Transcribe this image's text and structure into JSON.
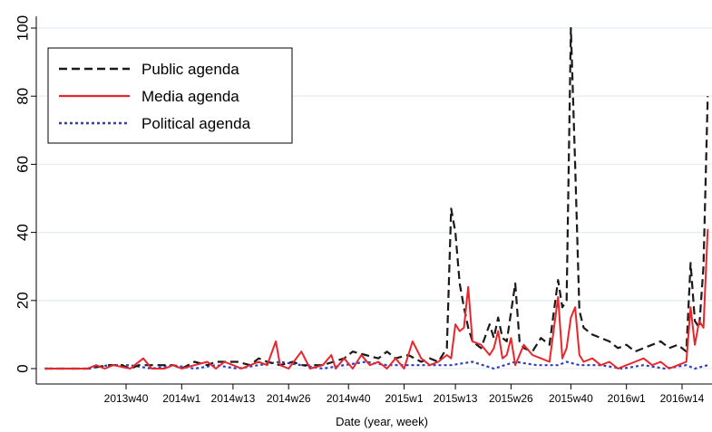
{
  "chart_data": {
    "type": "line",
    "xlabel": "Date (year, week)",
    "ylabel": "",
    "ylim": [
      0,
      100
    ],
    "yticks": [
      0,
      20,
      40,
      60,
      80,
      100
    ],
    "x_tick_labels": [
      "2013w40",
      "2014w1",
      "2014w13",
      "2014w26",
      "2014w40",
      "2015w1",
      "2015w13",
      "2015w26",
      "2015w40",
      "2016w1",
      "2016w14"
    ],
    "x_tick_weeks": [
      19,
      32,
      44,
      57,
      71,
      84,
      96,
      109,
      123,
      136,
      149
    ],
    "grid": true,
    "legend_position": "top-left",
    "series": [
      {
        "name": "Public agenda",
        "color": "#1a1a1a",
        "dash": "dashed",
        "points": [
          [
            0,
            0
          ],
          [
            5,
            0
          ],
          [
            10,
            0
          ],
          [
            15,
            1
          ],
          [
            18,
            1
          ],
          [
            20,
            0
          ],
          [
            22,
            1
          ],
          [
            25,
            1
          ],
          [
            30,
            1
          ],
          [
            32,
            0
          ],
          [
            35,
            2
          ],
          [
            38,
            1
          ],
          [
            40,
            2
          ],
          [
            45,
            2
          ],
          [
            48,
            1
          ],
          [
            50,
            3
          ],
          [
            52,
            2
          ],
          [
            55,
            1
          ],
          [
            58,
            2
          ],
          [
            60,
            1
          ],
          [
            65,
            1
          ],
          [
            70,
            3
          ],
          [
            72,
            5
          ],
          [
            75,
            4
          ],
          [
            78,
            3
          ],
          [
            80,
            5
          ],
          [
            82,
            3
          ],
          [
            85,
            4
          ],
          [
            88,
            2
          ],
          [
            90,
            3
          ],
          [
            92,
            2
          ],
          [
            94,
            6
          ],
          [
            95,
            47
          ],
          [
            96,
            40
          ],
          [
            97,
            25
          ],
          [
            98,
            18
          ],
          [
            99,
            12
          ],
          [
            100,
            8
          ],
          [
            102,
            6
          ],
          [
            104,
            13
          ],
          [
            105,
            9
          ],
          [
            106,
            15
          ],
          [
            107,
            9
          ],
          [
            108,
            8
          ],
          [
            110,
            25
          ],
          [
            111,
            8
          ],
          [
            112,
            6
          ],
          [
            114,
            5
          ],
          [
            116,
            9
          ],
          [
            118,
            7
          ],
          [
            120,
            26
          ],
          [
            121,
            18
          ],
          [
            122,
            20
          ],
          [
            123,
            100
          ],
          [
            124,
            60
          ],
          [
            125,
            17
          ],
          [
            126,
            12
          ],
          [
            128,
            10
          ],
          [
            130,
            9
          ],
          [
            132,
            8
          ],
          [
            134,
            6
          ],
          [
            136,
            7
          ],
          [
            138,
            5
          ],
          [
            140,
            6
          ],
          [
            142,
            7
          ],
          [
            144,
            8
          ],
          [
            146,
            6
          ],
          [
            148,
            7
          ],
          [
            150,
            5
          ],
          [
            151,
            31
          ],
          [
            152,
            14
          ],
          [
            153,
            12
          ],
          [
            154,
            30
          ],
          [
            155,
            80
          ]
        ]
      },
      {
        "name": "Media agenda",
        "color": "#e8262b",
        "dash": "solid",
        "points": [
          [
            0,
            0
          ],
          [
            5,
            0
          ],
          [
            10,
            0
          ],
          [
            12,
            1
          ],
          [
            14,
            0
          ],
          [
            16,
            1
          ],
          [
            20,
            0
          ],
          [
            23,
            3
          ],
          [
            25,
            0
          ],
          [
            28,
            0
          ],
          [
            30,
            1
          ],
          [
            32,
            0
          ],
          [
            35,
            1
          ],
          [
            38,
            2
          ],
          [
            40,
            0
          ],
          [
            42,
            2
          ],
          [
            44,
            1
          ],
          [
            46,
            0
          ],
          [
            48,
            1
          ],
          [
            50,
            2
          ],
          [
            52,
            1
          ],
          [
            54,
            8
          ],
          [
            55,
            1
          ],
          [
            57,
            0
          ],
          [
            60,
            5
          ],
          [
            62,
            0
          ],
          [
            65,
            1
          ],
          [
            67,
            4
          ],
          [
            68,
            0
          ],
          [
            70,
            3
          ],
          [
            72,
            0
          ],
          [
            74,
            4
          ],
          [
            76,
            1
          ],
          [
            78,
            2
          ],
          [
            80,
            0
          ],
          [
            82,
            3
          ],
          [
            84,
            0
          ],
          [
            86,
            8
          ],
          [
            88,
            3
          ],
          [
            90,
            1
          ],
          [
            92,
            2
          ],
          [
            94,
            4
          ],
          [
            95,
            3
          ],
          [
            96,
            13
          ],
          [
            97,
            11
          ],
          [
            98,
            12
          ],
          [
            99,
            24
          ],
          [
            100,
            8
          ],
          [
            102,
            7
          ],
          [
            104,
            4
          ],
          [
            105,
            6
          ],
          [
            106,
            11
          ],
          [
            107,
            3
          ],
          [
            108,
            4
          ],
          [
            109,
            9
          ],
          [
            110,
            1
          ],
          [
            112,
            7
          ],
          [
            114,
            4
          ],
          [
            116,
            3
          ],
          [
            118,
            2
          ],
          [
            120,
            21
          ],
          [
            121,
            3
          ],
          [
            122,
            6
          ],
          [
            123,
            15
          ],
          [
            124,
            18
          ],
          [
            125,
            4
          ],
          [
            126,
            2
          ],
          [
            128,
            3
          ],
          [
            130,
            1
          ],
          [
            132,
            2
          ],
          [
            134,
            0
          ],
          [
            136,
            1
          ],
          [
            138,
            2
          ],
          [
            140,
            3
          ],
          [
            142,
            1
          ],
          [
            144,
            2
          ],
          [
            146,
            0
          ],
          [
            148,
            1
          ],
          [
            150,
            2
          ],
          [
            151,
            18
          ],
          [
            152,
            7
          ],
          [
            153,
            14
          ],
          [
            154,
            12
          ],
          [
            155,
            41
          ]
        ]
      },
      {
        "name": "Political agenda",
        "color": "#2e3fbe",
        "dash": "dotted",
        "points": [
          [
            0,
            0
          ],
          [
            10,
            0
          ],
          [
            15,
            1
          ],
          [
            20,
            1
          ],
          [
            25,
            0
          ],
          [
            30,
            1
          ],
          [
            35,
            0
          ],
          [
            40,
            1
          ],
          [
            45,
            0
          ],
          [
            50,
            1
          ],
          [
            55,
            2
          ],
          [
            60,
            1
          ],
          [
            65,
            0
          ],
          [
            70,
            1
          ],
          [
            75,
            2
          ],
          [
            80,
            1
          ],
          [
            85,
            1
          ],
          [
            90,
            1
          ],
          [
            95,
            1
          ],
          [
            100,
            2
          ],
          [
            105,
            0
          ],
          [
            110,
            2
          ],
          [
            115,
            1
          ],
          [
            120,
            1
          ],
          [
            122,
            2
          ],
          [
            125,
            1
          ],
          [
            130,
            1
          ],
          [
            135,
            0
          ],
          [
            140,
            1
          ],
          [
            145,
            0
          ],
          [
            150,
            1
          ],
          [
            152,
            0
          ],
          [
            155,
            1
          ]
        ]
      }
    ]
  }
}
